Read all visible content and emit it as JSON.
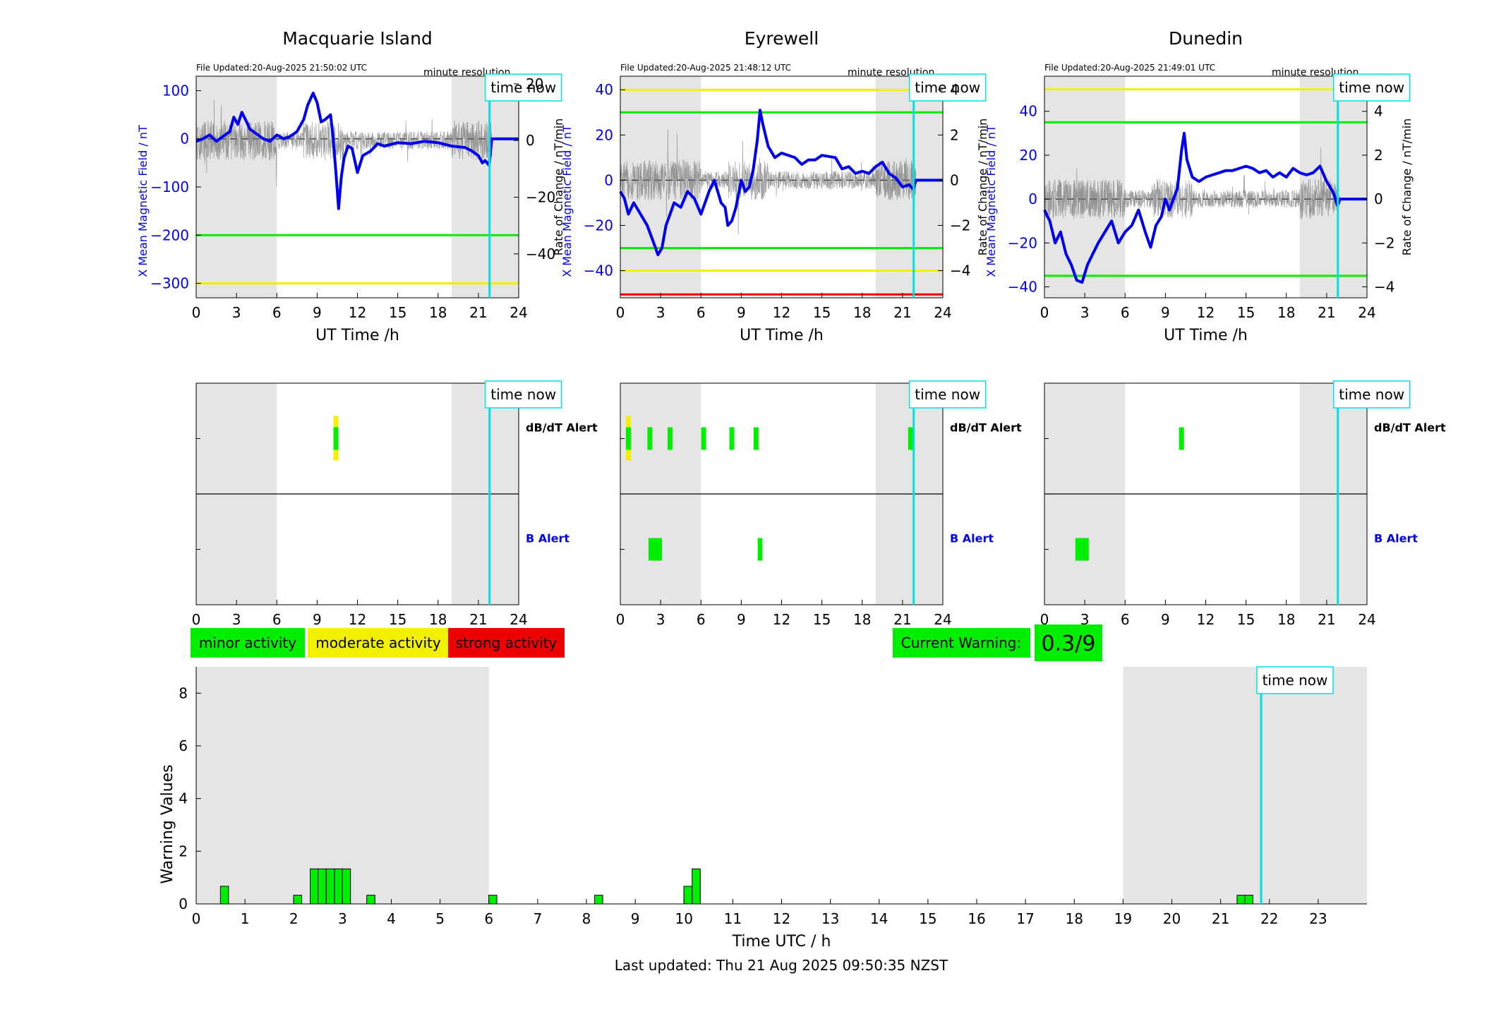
{
  "colors": {
    "shade": "#e5e5e5",
    "blue": "#0000ee",
    "green": "#00ee00",
    "yellow": "#f0f000",
    "red": "#ee0000",
    "cyan": "#00e0e6",
    "grey_trace": "#7a7a7a"
  },
  "time_now_h": 21.83,
  "time_now_label": "time now",
  "night_shade_h": [
    [
      0,
      6
    ],
    [
      19,
      24
    ]
  ],
  "stations": [
    {
      "title": "Macquarie Island",
      "file_updated": "File Updated:20-Aug-2025 21:50:02 UTC",
      "resolution": "minute resolution",
      "xlabel": "UT Time /h",
      "ylabel_left": "X Mean Magnetic Field / nT",
      "ylabel_right": "Rate of Change / nT/min",
      "x_ticks": [
        0,
        3,
        6,
        9,
        12,
        15,
        18,
        21,
        24
      ],
      "left_ylim": [
        -330,
        130
      ],
      "left_ticks": [
        100,
        0,
        -100,
        -200,
        -300
      ],
      "right_ylim": [
        -55.5,
        22.7
      ],
      "right_ticks": [
        20,
        0,
        -20,
        -40
      ],
      "threshold_lines": [
        {
          "value": -200,
          "color": "green"
        },
        {
          "value": -300,
          "color": "yellow"
        }
      ],
      "b_trace": [
        [
          0,
          -5
        ],
        [
          0.5,
          0
        ],
        [
          1,
          8
        ],
        [
          1.5,
          -5
        ],
        [
          2,
          5
        ],
        [
          2.5,
          15
        ],
        [
          2.8,
          45
        ],
        [
          3.1,
          30
        ],
        [
          3.4,
          55
        ],
        [
          3.7,
          38
        ],
        [
          4,
          20
        ],
        [
          4.5,
          10
        ],
        [
          5,
          0
        ],
        [
          5.5,
          -5
        ],
        [
          6,
          8
        ],
        [
          6.5,
          0
        ],
        [
          7,
          5
        ],
        [
          7.5,
          15
        ],
        [
          8,
          40
        ],
        [
          8.3,
          70
        ],
        [
          8.7,
          95
        ],
        [
          9,
          75
        ],
        [
          9.3,
          35
        ],
        [
          9.6,
          40
        ],
        [
          10,
          50
        ],
        [
          10.2,
          0
        ],
        [
          10.4,
          -70
        ],
        [
          10.6,
          -145
        ],
        [
          10.8,
          -80
        ],
        [
          11,
          -40
        ],
        [
          11.3,
          -15
        ],
        [
          11.6,
          -20
        ],
        [
          12,
          -70
        ],
        [
          12.4,
          -35
        ],
        [
          13,
          -25
        ],
        [
          13.5,
          -10
        ],
        [
          14,
          -15
        ],
        [
          15,
          -8
        ],
        [
          16,
          -10
        ],
        [
          17,
          -5
        ],
        [
          18,
          -8
        ],
        [
          19,
          -15
        ],
        [
          20,
          -18
        ],
        [
          20.5,
          -25
        ],
        [
          21,
          -35
        ],
        [
          21.3,
          -50
        ],
        [
          21.5,
          -45
        ],
        [
          21.8,
          -55
        ],
        [
          22,
          0
        ],
        [
          24,
          0
        ]
      ],
      "alert_bars": {
        "dbdt": [
          {
            "h": 10.4,
            "color": "green",
            "top": "yellow"
          }
        ],
        "b": []
      }
    },
    {
      "title": "Eyrewell",
      "file_updated": "File Updated:20-Aug-2025 21:48:12 UTC",
      "resolution": "minute resolution",
      "xlabel": "UT Time /h",
      "ylabel_left": "X Mean Magnetic Field / nT",
      "ylabel_right": "Rate of Change / nT/min",
      "x_ticks": [
        0,
        3,
        6,
        9,
        12,
        15,
        18,
        21,
        24
      ],
      "left_ylim": [
        -52,
        46
      ],
      "left_ticks": [
        40,
        20,
        0,
        -20,
        -40
      ],
      "right_ylim": [
        -5.2,
        4.6
      ],
      "right_ticks": [
        4,
        2,
        0,
        -2,
        -4
      ],
      "threshold_lines": [
        {
          "value": 40,
          "color": "yellow"
        },
        {
          "value": 30,
          "color": "green"
        },
        {
          "value": -30,
          "color": "green"
        },
        {
          "value": -40,
          "color": "yellow"
        },
        {
          "value": -50.5,
          "color": "red"
        }
      ],
      "b_trace": [
        [
          0,
          -5
        ],
        [
          0.3,
          -8
        ],
        [
          0.6,
          -15
        ],
        [
          1,
          -10
        ],
        [
          1.5,
          -15
        ],
        [
          2,
          -20
        ],
        [
          2.5,
          -28
        ],
        [
          2.8,
          -33
        ],
        [
          3.1,
          -30
        ],
        [
          3.4,
          -20
        ],
        [
          3.7,
          -15
        ],
        [
          4,
          -10
        ],
        [
          4.5,
          -12
        ],
        [
          5,
          -5
        ],
        [
          5.5,
          -8
        ],
        [
          6,
          -15
        ],
        [
          6.3,
          -10
        ],
        [
          6.6,
          -5
        ],
        [
          7,
          0
        ],
        [
          7.5,
          -10
        ],
        [
          7.8,
          -12
        ],
        [
          8,
          -20
        ],
        [
          8.3,
          -18
        ],
        [
          8.6,
          -12
        ],
        [
          9,
          0
        ],
        [
          9.3,
          -5
        ],
        [
          9.6,
          -3
        ],
        [
          9.9,
          5
        ],
        [
          10.2,
          18
        ],
        [
          10.4,
          31
        ],
        [
          10.6,
          25
        ],
        [
          11,
          15
        ],
        [
          11.5,
          10
        ],
        [
          12,
          12
        ],
        [
          12.5,
          11
        ],
        [
          13,
          10
        ],
        [
          13.5,
          7
        ],
        [
          14,
          9
        ],
        [
          14.5,
          9
        ],
        [
          15,
          11
        ],
        [
          16,
          10
        ],
        [
          16.5,
          5
        ],
        [
          17,
          6
        ],
        [
          17.5,
          3
        ],
        [
          18,
          4
        ],
        [
          18.5,
          3
        ],
        [
          19,
          6
        ],
        [
          19.5,
          8
        ],
        [
          20,
          3
        ],
        [
          20.5,
          1
        ],
        [
          21,
          -3
        ],
        [
          21.5,
          -2
        ],
        [
          21.8,
          -4
        ],
        [
          22,
          0
        ],
        [
          24,
          0
        ]
      ],
      "alert_bars": {
        "dbdt": [
          {
            "h": 0.6,
            "color": "green",
            "top": "yellow"
          },
          {
            "h": 2.2,
            "color": "green"
          },
          {
            "h": 3.7,
            "color": "green"
          },
          {
            "h": 6.2,
            "color": "green"
          },
          {
            "h": 8.3,
            "color": "green"
          },
          {
            "h": 10.1,
            "color": "green"
          },
          {
            "h": 21.6,
            "color": "green"
          }
        ],
        "b": [
          {
            "h": 2.6,
            "w": 1.0,
            "color": "green"
          },
          {
            "h": 10.4,
            "w": 0.35,
            "color": "green"
          }
        ]
      }
    },
    {
      "title": "Dunedin",
      "file_updated": "File Updated:20-Aug-2025 21:49:01 UTC",
      "resolution": "minute resolution",
      "xlabel": "UT Time /h",
      "ylabel_left": "X Mean Magnetic Field / nT",
      "ylabel_right": "Rate of Change / nT/min",
      "x_ticks": [
        0,
        3,
        6,
        9,
        12,
        15,
        18,
        21,
        24
      ],
      "left_ylim": [
        -45,
        56
      ],
      "left_ticks": [
        40,
        20,
        0,
        -20,
        -40
      ],
      "right_ylim": [
        -4.5,
        5.6
      ],
      "right_ticks": [
        4,
        2,
        0,
        -2,
        -4
      ],
      "threshold_lines": [
        {
          "value": 50,
          "color": "yellow"
        },
        {
          "value": 35,
          "color": "green"
        },
        {
          "value": -35,
          "color": "green"
        }
      ],
      "b_trace": [
        [
          0,
          -5
        ],
        [
          0.4,
          -10
        ],
        [
          0.8,
          -20
        ],
        [
          1.2,
          -15
        ],
        [
          1.6,
          -25
        ],
        [
          2,
          -30
        ],
        [
          2.4,
          -37
        ],
        [
          2.8,
          -38
        ],
        [
          3.2,
          -30
        ],
        [
          3.6,
          -25
        ],
        [
          4,
          -20
        ],
        [
          4.5,
          -15
        ],
        [
          5,
          -10
        ],
        [
          5.5,
          -20
        ],
        [
          6,
          -15
        ],
        [
          6.5,
          -12
        ],
        [
          7,
          -5
        ],
        [
          7.5,
          -15
        ],
        [
          7.9,
          -22
        ],
        [
          8.3,
          -12
        ],
        [
          8.7,
          -8
        ],
        [
          9,
          0
        ],
        [
          9.3,
          -5
        ],
        [
          9.6,
          0
        ],
        [
          9.9,
          5
        ],
        [
          10.2,
          22
        ],
        [
          10.4,
          30
        ],
        [
          10.6,
          18
        ],
        [
          11,
          10
        ],
        [
          11.5,
          8
        ],
        [
          12,
          10
        ],
        [
          12.5,
          11
        ],
        [
          13,
          12
        ],
        [
          13.5,
          13
        ],
        [
          14,
          13
        ],
        [
          14.5,
          14
        ],
        [
          15,
          15
        ],
        [
          15.5,
          14
        ],
        [
          16,
          12
        ],
        [
          16.5,
          13
        ],
        [
          17,
          10
        ],
        [
          17.5,
          12
        ],
        [
          18,
          10
        ],
        [
          18.5,
          14
        ],
        [
          19,
          12
        ],
        [
          19.5,
          11
        ],
        [
          20,
          12
        ],
        [
          20.5,
          15
        ],
        [
          21,
          8
        ],
        [
          21.5,
          3
        ],
        [
          21.8,
          -3
        ],
        [
          22,
          0
        ],
        [
          24,
          0
        ]
      ],
      "alert_bars": {
        "dbdt": [
          {
            "h": 10.2,
            "color": "green"
          }
        ],
        "b": [
          {
            "h": 2.8,
            "w": 1.0,
            "color": "green"
          }
        ]
      }
    }
  ],
  "alert_labels": {
    "dbdt": "dB/dT Alert",
    "b": "B Alert"
  },
  "legend": {
    "minor": "minor activity",
    "moderate": "moderate activity",
    "strong": "strong activity"
  },
  "current_warning": {
    "label": "Current Warning:",
    "value": "0.3/9"
  },
  "warning_chart": {
    "type": "bar",
    "xlabel": "Time UTC / h",
    "ylabel": "Warning Values",
    "xlim": [
      0,
      24
    ],
    "ylim": [
      0,
      9
    ],
    "x_ticks": [
      0,
      1,
      2,
      3,
      4,
      5,
      6,
      7,
      8,
      9,
      10,
      11,
      12,
      13,
      14,
      15,
      16,
      17,
      18,
      19,
      20,
      21,
      22,
      23
    ],
    "y_ticks": [
      0,
      2,
      4,
      6,
      8
    ],
    "bar_width_h": 0.1667,
    "bars": [
      {
        "h": 0.58,
        "v": 0.67
      },
      {
        "h": 2.08,
        "v": 0.33
      },
      {
        "h": 2.42,
        "v": 1.33
      },
      {
        "h": 2.58,
        "v": 1.33
      },
      {
        "h": 2.75,
        "v": 1.33
      },
      {
        "h": 2.92,
        "v": 1.33
      },
      {
        "h": 3.08,
        "v": 1.33
      },
      {
        "h": 3.58,
        "v": 0.33
      },
      {
        "h": 6.08,
        "v": 0.33
      },
      {
        "h": 8.25,
        "v": 0.33
      },
      {
        "h": 10.08,
        "v": 0.67
      },
      {
        "h": 10.25,
        "v": 1.33
      },
      {
        "h": 21.42,
        "v": 0.33
      },
      {
        "h": 21.58,
        "v": 0.33
      }
    ]
  },
  "footer": "Last updated: Thu 21 Aug 2025 09:50:35 NZST"
}
